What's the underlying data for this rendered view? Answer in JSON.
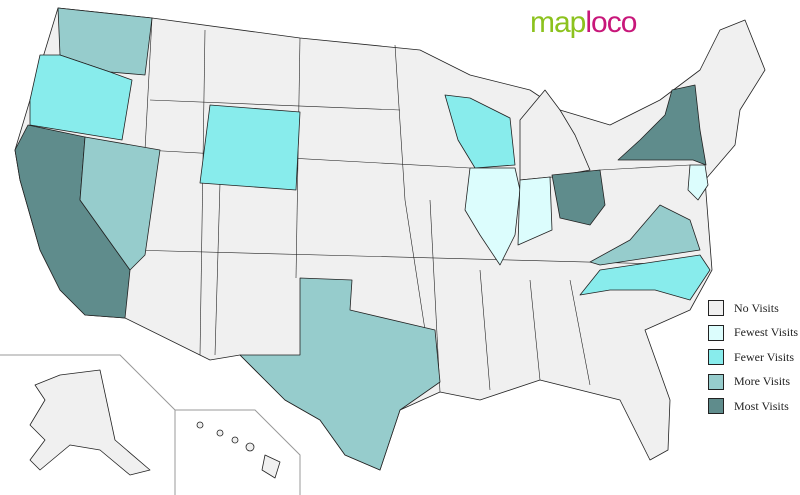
{
  "logo": {
    "part1": "map",
    "part2": "loco"
  },
  "legend": [
    {
      "label": "No Visits",
      "color": "#f0f0f0"
    },
    {
      "label": "Fewest Visits",
      "color": "#dcfdfd"
    },
    {
      "label": "Fewer Visits",
      "color": "#88ecec"
    },
    {
      "label": "More Visits",
      "color": "#96cccc"
    },
    {
      "label": "Most Visits",
      "color": "#5f8c8c"
    }
  ],
  "states": [
    {
      "name": "Washington",
      "level": "More Visits"
    },
    {
      "name": "Oregon",
      "level": "Fewer Visits"
    },
    {
      "name": "California",
      "level": "Most Visits"
    },
    {
      "name": "Nevada",
      "level": "More Visits"
    },
    {
      "name": "Wyoming",
      "level": "Fewer Visits"
    },
    {
      "name": "Texas",
      "level": "More Visits"
    },
    {
      "name": "Wisconsin",
      "level": "Fewer Visits"
    },
    {
      "name": "Illinois",
      "level": "Fewest Visits"
    },
    {
      "name": "Indiana",
      "level": "Fewest Visits"
    },
    {
      "name": "Ohio",
      "level": "Most Visits"
    },
    {
      "name": "New York",
      "level": "Most Visits"
    },
    {
      "name": "New Jersey",
      "level": "Fewest Visits"
    },
    {
      "name": "Virginia",
      "level": "More Visits"
    },
    {
      "name": "North Carolina",
      "level": "Fewer Visits"
    }
  ]
}
